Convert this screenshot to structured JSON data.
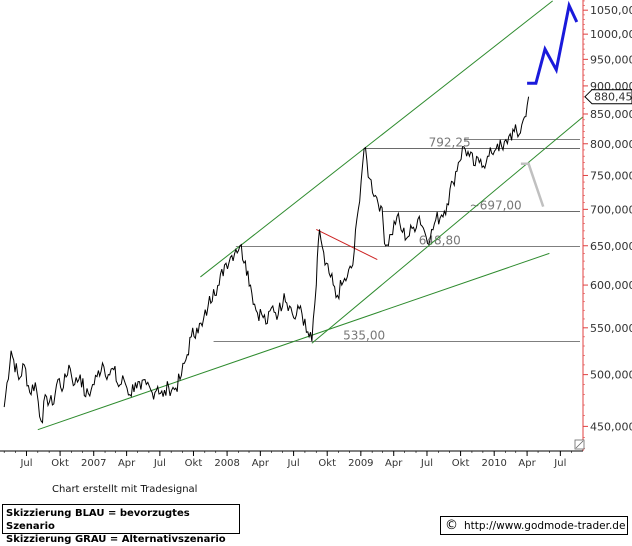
{
  "chart_data": {
    "type": "line",
    "y_scale": "log",
    "ylim": [
      428,
      1072
    ],
    "y_ticks": [
      "450,000",
      "500,000",
      "550,000",
      "600,000",
      "650,000",
      "700,000",
      "750,000",
      "800,000",
      "850,000",
      "900,000",
      "950,000",
      "1000,000",
      "1050,000"
    ],
    "y_tick_values": [
      450,
      500,
      550,
      600,
      650,
      700,
      750,
      800,
      850,
      900,
      950,
      1000,
      1050
    ],
    "x_ticks": [
      "Jul",
      "Okt",
      "2007",
      "Apr",
      "Jul",
      "Okt",
      "2008",
      "Apr",
      "Jul",
      "Okt",
      "2009",
      "Apr",
      "Jul",
      "Okt",
      "2010",
      "Apr",
      "Jul"
    ],
    "x_tick_dates": [
      "2006-07",
      "2006-10",
      "2007-01",
      "2007-04",
      "2007-07",
      "2007-10",
      "2008-01",
      "2008-04",
      "2008-07",
      "2008-10",
      "2009-01",
      "2009-04",
      "2009-07",
      "2009-10",
      "2010-01",
      "2010-04",
      "2010-07"
    ],
    "last_value_label": "880,45",
    "price_series": [
      [
        "2006-05-01",
        468
      ],
      [
        "2006-05-20",
        525
      ],
      [
        "2006-06-10",
        495
      ],
      [
        "2006-06-25",
        510
      ],
      [
        "2006-07-10",
        482
      ],
      [
        "2006-07-25",
        492
      ],
      [
        "2006-08-10",
        455
      ],
      [
        "2006-08-25",
        478
      ],
      [
        "2006-09-10",
        470
      ],
      [
        "2006-09-25",
        495
      ],
      [
        "2006-10-10",
        487
      ],
      [
        "2006-10-25",
        510
      ],
      [
        "2006-11-10",
        490
      ],
      [
        "2006-11-25",
        500
      ],
      [
        "2006-12-10",
        478
      ],
      [
        "2006-12-25",
        485
      ],
      [
        "2007-01-10",
        498
      ],
      [
        "2007-01-25",
        512
      ],
      [
        "2007-02-10",
        500
      ],
      [
        "2007-02-25",
        505
      ],
      [
        "2007-03-10",
        488
      ],
      [
        "2007-03-25",
        495
      ],
      [
        "2007-04-10",
        480
      ],
      [
        "2007-04-25",
        492
      ],
      [
        "2007-05-10",
        485
      ],
      [
        "2007-05-25",
        490
      ],
      [
        "2007-06-10",
        482
      ],
      [
        "2007-06-25",
        488
      ],
      [
        "2007-07-10",
        478
      ],
      [
        "2007-07-25",
        488
      ],
      [
        "2007-08-10",
        485
      ],
      [
        "2007-08-25",
        495
      ],
      [
        "2007-09-10",
        515
      ],
      [
        "2007-09-25",
        540
      ],
      [
        "2007-10-10",
        550
      ],
      [
        "2007-10-25",
        552
      ],
      [
        "2007-11-10",
        575
      ],
      [
        "2007-11-25",
        595
      ],
      [
        "2007-12-10",
        600
      ],
      [
        "2007-12-25",
        625
      ],
      [
        "2008-01-10",
        635
      ],
      [
        "2008-01-25",
        645
      ],
      [
        "2008-02-05",
        650
      ],
      [
        "2008-02-20",
        630
      ],
      [
        "2008-03-05",
        600
      ],
      [
        "2008-03-20",
        570
      ],
      [
        "2008-04-05",
        565
      ],
      [
        "2008-04-20",
        555
      ],
      [
        "2008-05-05",
        575
      ],
      [
        "2008-05-20",
        565
      ],
      [
        "2008-06-05",
        590
      ],
      [
        "2008-06-20",
        575
      ],
      [
        "2008-07-05",
        560
      ],
      [
        "2008-07-20",
        575
      ],
      [
        "2008-08-05",
        545
      ],
      [
        "2008-08-20",
        535
      ],
      [
        "2008-09-01",
        600
      ],
      [
        "2008-09-10",
        672
      ],
      [
        "2008-09-25",
        625
      ],
      [
        "2008-10-10",
        610
      ],
      [
        "2008-10-25",
        585
      ],
      [
        "2008-11-10",
        600
      ],
      [
        "2008-11-25",
        610
      ],
      [
        "2008-12-10",
        625
      ],
      [
        "2008-12-25",
        700
      ],
      [
        "2009-01-10",
        792
      ],
      [
        "2009-01-25",
        745
      ],
      [
        "2009-02-10",
        720
      ],
      [
        "2009-02-25",
        705
      ],
      [
        "2009-03-10",
        650
      ],
      [
        "2009-03-25",
        665
      ],
      [
        "2009-04-10",
        690
      ],
      [
        "2009-04-25",
        668
      ],
      [
        "2009-05-10",
        662
      ],
      [
        "2009-05-25",
        675
      ],
      [
        "2009-06-10",
        690
      ],
      [
        "2009-06-25",
        668
      ],
      [
        "2009-07-10",
        660
      ],
      [
        "2009-07-25",
        685
      ],
      [
        "2009-08-10",
        692
      ],
      [
        "2009-08-25",
        708
      ],
      [
        "2009-09-10",
        740
      ],
      [
        "2009-09-25",
        770
      ],
      [
        "2009-10-10",
        795
      ],
      [
        "2009-10-25",
        780
      ],
      [
        "2009-11-10",
        765
      ],
      [
        "2009-11-25",
        775
      ],
      [
        "2009-12-10",
        770
      ],
      [
        "2009-12-25",
        785
      ],
      [
        "2010-01-10",
        800
      ],
      [
        "2010-01-25",
        790
      ],
      [
        "2010-02-10",
        812
      ],
      [
        "2010-02-25",
        820
      ],
      [
        "2010-03-10",
        815
      ],
      [
        "2010-03-25",
        845
      ],
      [
        "2010-04-05",
        880.45
      ]
    ],
    "support_levels": [
      {
        "label": "792,25",
        "value": 792.25
      },
      {
        "label": "~697,00",
        "value": 697
      },
      {
        "label": "648,80",
        "value": 648.8
      },
      {
        "label": "535,00",
        "value": 535
      }
    ],
    "unlabeled_levels": [
      807
    ],
    "trend_lines": [
      {
        "color": "#2e8b2e",
        "points": [
          [
            "2006-08-01",
            447
          ],
          [
            "2010-06-01",
            640
          ]
        ]
      },
      {
        "color": "#2e8b2e",
        "points": [
          [
            "2008-08-20",
            533
          ],
          [
            "2010-09-01",
            845
          ]
        ]
      },
      {
        "color": "#2e8b2e",
        "points": [
          [
            "2007-10-20",
            610
          ],
          [
            "2010-06-10",
            1070
          ]
        ]
      },
      {
        "color": "#cc2222",
        "points": [
          [
            "2008-09-01",
            672
          ],
          [
            "2009-02-15",
            632
          ]
        ]
      }
    ],
    "scenario_blue": {
      "label": "Skizzierung BLAU = bevorzugtes Szenario",
      "color": "#1a1adb",
      "points": [
        [
          "2010-04-01",
          905
        ],
        [
          "2010-04-25",
          905
        ],
        [
          "2010-05-20",
          970
        ],
        [
          "2010-06-20",
          930
        ],
        [
          "2010-07-25",
          1060
        ],
        [
          "2010-08-15",
          1025
        ]
      ]
    },
    "scenario_grey": {
      "label": "Skizzierung GRAU = Alternativszenario",
      "color": "#c0c0c0",
      "points": [
        [
          "2010-03-15",
          768
        ],
        [
          "2010-04-05",
          768
        ],
        [
          "2010-05-15",
          704
        ]
      ]
    }
  },
  "credit_text": "Chart erstellt mit Tradesignal",
  "legend": {
    "line1": "Skizzierung BLAU = bevorzugtes Szenario",
    "line2": "Skizzierung GRAU = Alternativszenario"
  },
  "footer": {
    "copyright_symbol": "©",
    "url": "http://www.godmode-trader.de"
  }
}
